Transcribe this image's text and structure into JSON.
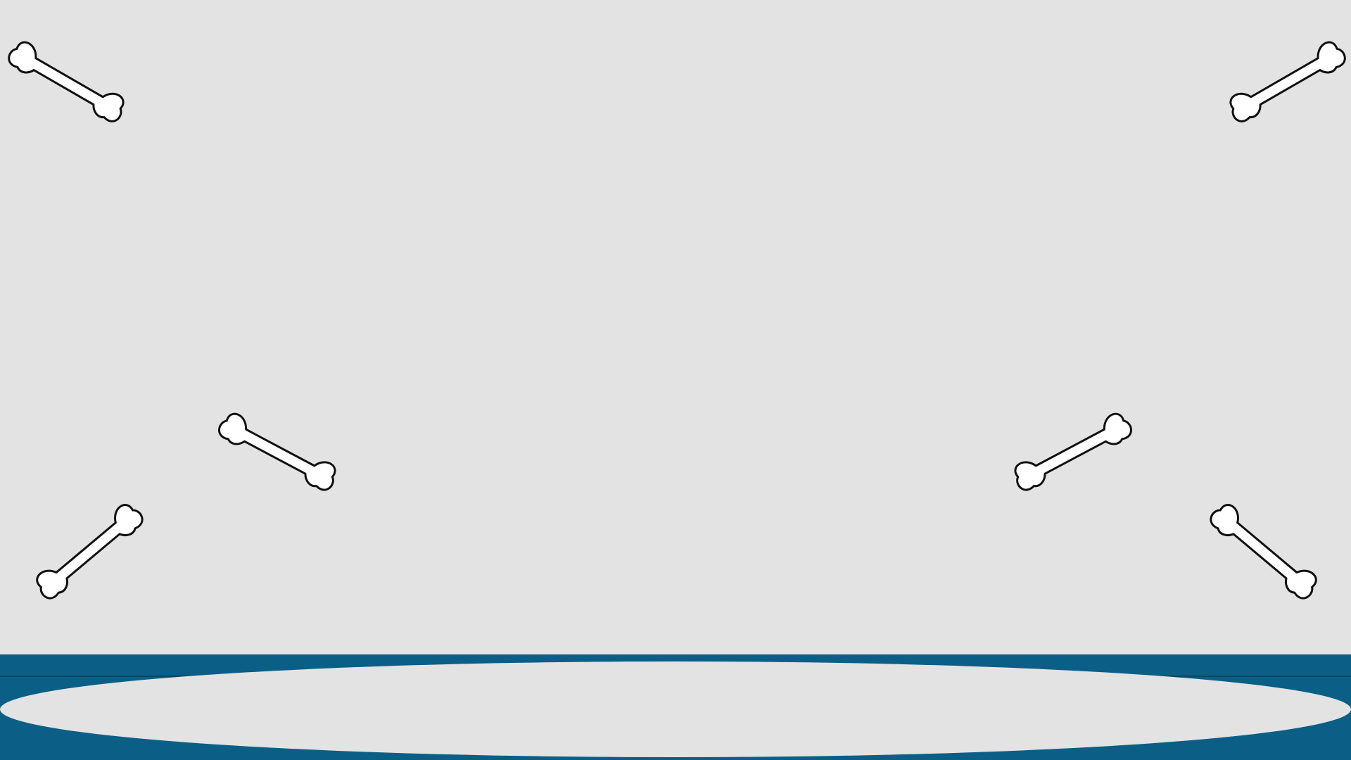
{
  "scene": {
    "background_color": "#e3e3e3",
    "floor_color": "#0b5f86",
    "bone_fill": "#ffffff",
    "bone_stroke": "#111111",
    "bones": [
      {
        "icon": "bone-icon"
      },
      {
        "icon": "bone-icon"
      },
      {
        "icon": "bone-icon"
      },
      {
        "icon": "bone-icon"
      },
      {
        "icon": "bone-icon"
      },
      {
        "icon": "bone-icon"
      }
    ]
  }
}
